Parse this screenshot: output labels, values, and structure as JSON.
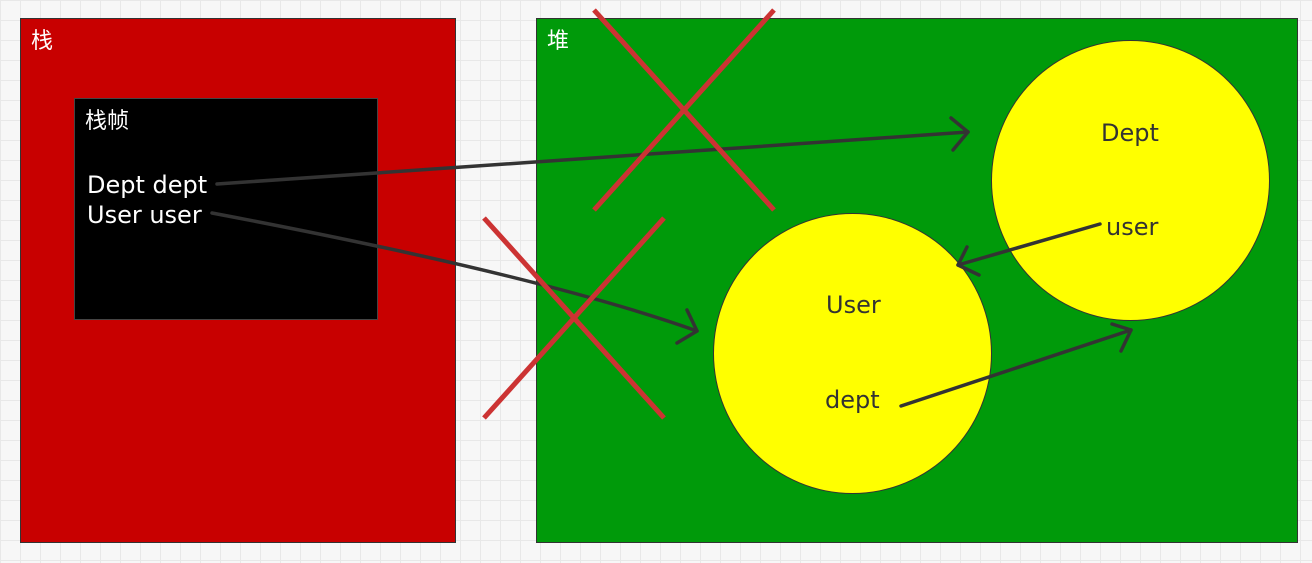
{
  "stack": {
    "title": "栈",
    "color": "#c80000",
    "frame": {
      "title": "栈帧",
      "variables": [
        "Dept dept",
        "User user"
      ]
    }
  },
  "heap": {
    "title": "堆",
    "color": "#009a0a",
    "objects": {
      "user": {
        "name": "User",
        "field": "dept"
      },
      "dept": {
        "name": "Dept",
        "field": "user"
      }
    },
    "object_color": "#ffff00"
  },
  "cross_color": "#cc3333",
  "arrow_color": "#333333"
}
